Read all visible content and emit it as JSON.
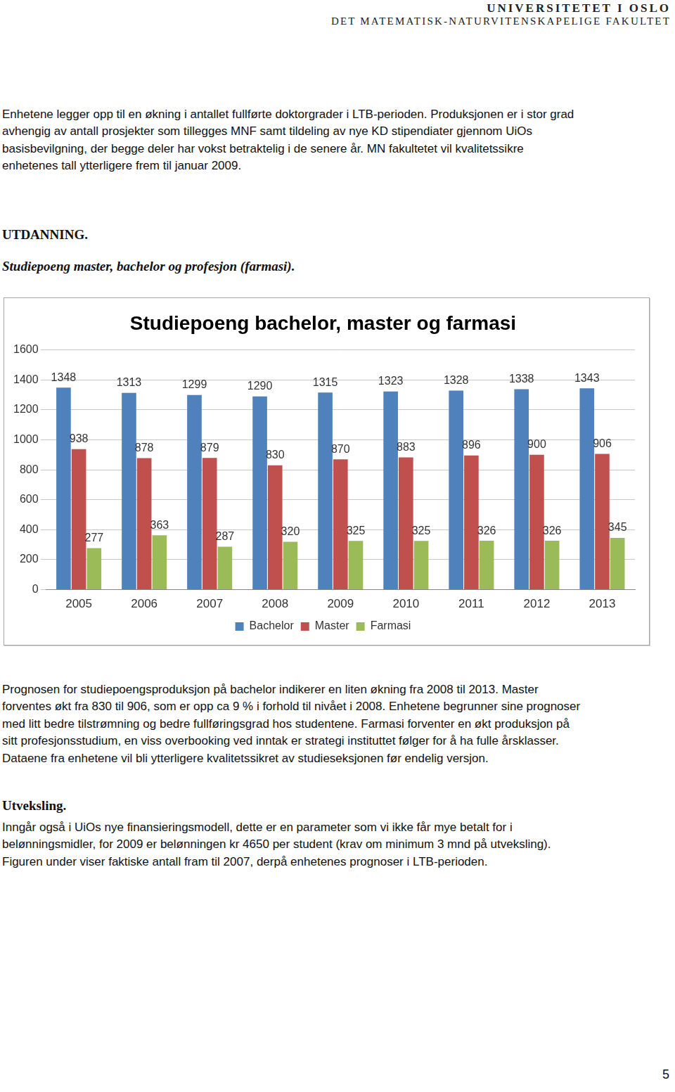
{
  "header": {
    "institution": "UNIVERSITETET I OSLO",
    "faculty": "DET MATEMATISK-NATURVITENSKAPELIGE FAKULTET"
  },
  "intro": [
    "Enhetene legger opp til en økning i antallet fullførte doktorgrader i LTB-perioden. Produksjonen er i stor grad",
    "avhengig av antall prosjekter som tillegges MNF samt tildeling av nye KD stipendiater gjennom UiOs",
    "basisbevilgning, der begge deler har vokst betraktelig i de senere år. MN fakultetet vil kvalitetssikre",
    "enhetenes tall ytterligere frem til januar 2009."
  ],
  "heading": "UTDANNING.",
  "subheading": "Studiepoeng master, bachelor og profesjon (farmasi).",
  "chart_data": {
    "type": "bar",
    "title": "Studiepoeng bachelor, master og farmasi",
    "categories": [
      "2005",
      "2006",
      "2007",
      "2008",
      "2009",
      "2010",
      "2011",
      "2012",
      "2013"
    ],
    "series": [
      {
        "name": "Bachelor",
        "color": "#4f81bd",
        "values": [
          1348,
          1313,
          1299,
          1290,
          1315,
          1323,
          1328,
          1338,
          1343
        ]
      },
      {
        "name": "Master",
        "color": "#c0504d",
        "values": [
          938,
          878,
          879,
          830,
          870,
          883,
          896,
          900,
          906
        ]
      },
      {
        "name": "Farmasi",
        "color": "#9bbb59",
        "values": [
          277,
          363,
          287,
          320,
          325,
          325,
          326,
          326,
          345
        ]
      }
    ],
    "ylim": [
      0,
      1600
    ],
    "yticks": [
      0,
      200,
      400,
      600,
      800,
      1000,
      1200,
      1400,
      1600
    ],
    "grid": true,
    "legend": "bottom",
    "data_labels": true
  },
  "chart_text": [
    "Prognosen for studiepoengsproduksjon på bachelor indikerer en liten økning fra 2008 til 2013. Master",
    "forventes økt fra 830 til 906, som er opp ca 9 % i forhold til nivået i 2008. Enhetene begrunner sine prognoser",
    "med litt bedre tilstrømning og bedre fullføringsgrad hos studentene. Farmasi forventer en økt produksjon på",
    "sitt profesjonsstudium, en viss overbooking ved inntak er strategi instituttet følger for å ha fulle årsklasser.",
    "Dataene fra enhetene vil bli ytterligere kvalitetssikret av studieseksjonen før endelig versjon."
  ],
  "heading2": "Utveksling.",
  "exchange_text": [
    "Inngår også i UiOs nye finansieringsmodell, dette er en parameter som vi ikke får mye betalt for i",
    "belønningsmidler, for 2009 er belønningen kr 4650 per student (krav om minimum 3 mnd på utveksling).",
    "Figuren under viser faktiske antall fram til 2007, derpå enhetenes prognoser i LTB-perioden."
  ],
  "page_number": 5
}
